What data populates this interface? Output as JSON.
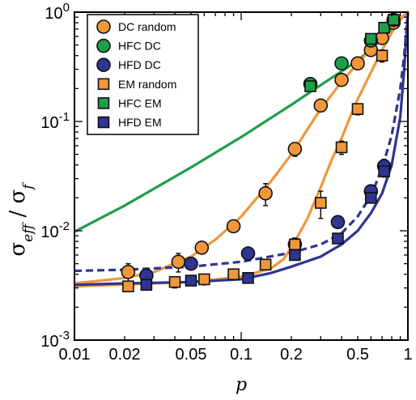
{
  "chart_data": {
    "type": "scatter",
    "xscale": "log",
    "yscale": "log",
    "xlim": [
      0.01,
      1
    ],
    "ylim": [
      0.001,
      1
    ],
    "xlabel": "p",
    "ylabel": {
      "base1": "σ",
      "sub1": "eff",
      "slash": " / ",
      "base2": "σ",
      "sub2": "f"
    },
    "x_tick_labels": [
      {
        "value": 0.01,
        "label": "0.01"
      },
      {
        "value": 0.02,
        "label": "0.02"
      },
      {
        "value": 0.05,
        "label": "0.05"
      },
      {
        "value": 0.1,
        "label": "0.1"
      },
      {
        "value": 0.2,
        "label": "0.2"
      },
      {
        "value": 0.5,
        "label": "0.5"
      },
      {
        "value": 1,
        "label": "1"
      }
    ],
    "y_tick_labels": [
      {
        "value": 1,
        "base": "10",
        "exp": "0"
      },
      {
        "value": 0.1,
        "base": "10",
        "exp": "-1"
      },
      {
        "value": 0.01,
        "base": "10",
        "exp": "-2"
      },
      {
        "value": 0.001,
        "base": "10",
        "exp": "-3"
      }
    ],
    "grid": false,
    "legend_position": "top-left",
    "colors": {
      "orange": "#f0963c",
      "green": "#1e9e48",
      "navy": "#2e3592",
      "edge": "#111111"
    },
    "series": [
      {
        "name": "DC random",
        "marker": "circle",
        "color": "#f0963c",
        "points": [
          [
            0.021,
            0.0042
          ],
          [
            0.042,
            0.0052
          ],
          [
            0.058,
            0.007
          ],
          [
            0.09,
            0.011
          ],
          [
            0.14,
            0.022
          ],
          [
            0.21,
            0.056
          ],
          [
            0.3,
            0.14
          ],
          [
            0.4,
            0.24
          ],
          [
            0.5,
            0.34
          ],
          [
            0.6,
            0.45
          ],
          [
            0.7,
            0.58
          ],
          [
            0.82,
            0.8
          ]
        ],
        "errors": [
          0.0008,
          0.001,
          0.0008,
          0.0012,
          0.005,
          0.008,
          0.01,
          0.02,
          0.02,
          0.03,
          0.04,
          0.06
        ]
      },
      {
        "name": "HFC DC",
        "marker": "circle",
        "color": "#1e9e48",
        "points": [
          [
            0.26,
            0.22
          ],
          [
            0.4,
            0.34
          ],
          [
            0.6,
            0.55
          ],
          [
            0.82,
            0.85
          ]
        ],
        "errors": [
          0.02,
          0.02,
          0.03,
          0.05
        ]
      },
      {
        "name": "HFD DC",
        "marker": "circle",
        "color": "#2e3592",
        "points": [
          [
            0.027,
            0.0039
          ],
          [
            0.05,
            0.005
          ],
          [
            0.11,
            0.0062
          ],
          [
            0.21,
            0.0075
          ],
          [
            0.38,
            0.012
          ],
          [
            0.6,
            0.023
          ],
          [
            0.72,
            0.039
          ]
        ],
        "errors": [
          0.0004,
          0.0005,
          0.0006,
          0.0008,
          0.0012,
          0.003,
          0.006
        ]
      },
      {
        "name": "EM random",
        "marker": "square",
        "color": "#f0963c",
        "points": [
          [
            0.021,
            0.0031
          ],
          [
            0.04,
            0.0034
          ],
          [
            0.06,
            0.0036
          ],
          [
            0.09,
            0.004
          ],
          [
            0.14,
            0.0049
          ],
          [
            0.21,
            0.0075
          ],
          [
            0.3,
            0.018
          ],
          [
            0.4,
            0.058
          ],
          [
            0.5,
            0.13
          ],
          [
            0.7,
            0.4
          ],
          [
            0.82,
            0.84
          ]
        ],
        "errors": [
          0.0003,
          0.0004,
          0.0004,
          0.0004,
          0.0005,
          0.0008,
          0.005,
          0.008,
          0.015,
          0.05,
          0.06
        ]
      },
      {
        "name": "HFC EM",
        "marker": "square",
        "color": "#1e9e48",
        "points": [
          [
            0.26,
            0.21
          ],
          [
            0.6,
            0.57
          ],
          [
            0.72,
            0.72
          ],
          [
            0.82,
            0.85
          ]
        ],
        "errors": [
          0.02,
          0.03,
          0.04,
          0.05
        ]
      },
      {
        "name": "HFD EM",
        "marker": "square",
        "color": "#2e3592",
        "points": [
          [
            0.027,
            0.0032
          ],
          [
            0.05,
            0.0035
          ],
          [
            0.11,
            0.0037
          ],
          [
            0.21,
            0.006
          ],
          [
            0.38,
            0.0085
          ],
          [
            0.6,
            0.02
          ],
          [
            0.72,
            0.035
          ]
        ],
        "errors": [
          0.0003,
          0.0003,
          0.0003,
          0.0005,
          0.0008,
          0.002,
          0.004
        ]
      }
    ],
    "curves": [
      {
        "color": "#1e9e48",
        "style": "solid",
        "points": [
          [
            0.01,
            0.0098
          ],
          [
            0.02,
            0.017
          ],
          [
            0.05,
            0.038
          ],
          [
            0.1,
            0.072
          ],
          [
            0.2,
            0.142
          ],
          [
            0.3,
            0.215
          ],
          [
            0.5,
            0.36
          ],
          [
            0.7,
            0.57
          ],
          [
            0.9,
            0.85
          ],
          [
            1,
            1
          ]
        ]
      },
      {
        "color": "#f0963c",
        "style": "solid",
        "points": [
          [
            0.01,
            0.0033
          ],
          [
            0.02,
            0.0037
          ],
          [
            0.03,
            0.0042
          ],
          [
            0.05,
            0.0058
          ],
          [
            0.07,
            0.0083
          ],
          [
            0.1,
            0.0135
          ],
          [
            0.15,
            0.028
          ],
          [
            0.2,
            0.05
          ],
          [
            0.25,
            0.085
          ],
          [
            0.3,
            0.13
          ],
          [
            0.4,
            0.23
          ],
          [
            0.5,
            0.34
          ],
          [
            0.6,
            0.46
          ],
          [
            0.7,
            0.6
          ],
          [
            0.8,
            0.75
          ],
          [
            0.9,
            0.88
          ],
          [
            1,
            1
          ]
        ]
      },
      {
        "color": "#f0963c",
        "style": "solid",
        "points": [
          [
            0.01,
            0.0031
          ],
          [
            0.05,
            0.0034
          ],
          [
            0.1,
            0.0038
          ],
          [
            0.15,
            0.0045
          ],
          [
            0.18,
            0.0055
          ],
          [
            0.21,
            0.008
          ],
          [
            0.25,
            0.013
          ],
          [
            0.3,
            0.025
          ],
          [
            0.35,
            0.045
          ],
          [
            0.4,
            0.07
          ],
          [
            0.45,
            0.11
          ],
          [
            0.5,
            0.16
          ],
          [
            0.6,
            0.28
          ],
          [
            0.7,
            0.45
          ],
          [
            0.8,
            0.65
          ],
          [
            0.9,
            0.85
          ],
          [
            1,
            1
          ]
        ]
      },
      {
        "color": "#2e3592",
        "style": "dashed",
        "points": [
          [
            0.01,
            0.0043
          ],
          [
            0.02,
            0.0044
          ],
          [
            0.05,
            0.0047
          ],
          [
            0.1,
            0.0052
          ],
          [
            0.2,
            0.0063
          ],
          [
            0.3,
            0.0075
          ],
          [
            0.4,
            0.0095
          ],
          [
            0.5,
            0.0135
          ],
          [
            0.6,
            0.021
          ],
          [
            0.7,
            0.037
          ],
          [
            0.8,
            0.075
          ],
          [
            0.9,
            0.2
          ],
          [
            0.95,
            0.4
          ],
          [
            1,
            1
          ]
        ]
      },
      {
        "color": "#2e3592",
        "style": "solid",
        "points": [
          [
            0.01,
            0.0032
          ],
          [
            0.02,
            0.0033
          ],
          [
            0.05,
            0.0034
          ],
          [
            0.1,
            0.0036
          ],
          [
            0.15,
            0.0041
          ],
          [
            0.2,
            0.0047
          ],
          [
            0.3,
            0.0058
          ],
          [
            0.4,
            0.0075
          ],
          [
            0.5,
            0.01
          ],
          [
            0.6,
            0.0145
          ],
          [
            0.7,
            0.022
          ],
          [
            0.8,
            0.04
          ],
          [
            0.9,
            0.11
          ],
          [
            0.95,
            0.3
          ],
          [
            1,
            1
          ]
        ]
      }
    ]
  }
}
